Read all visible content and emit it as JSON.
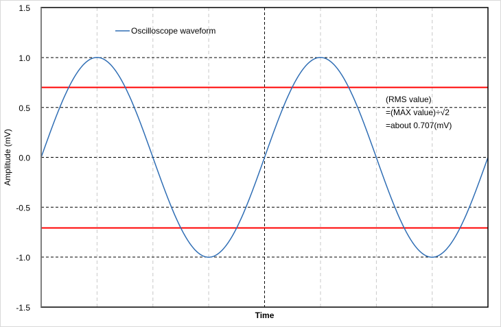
{
  "chart_data": {
    "type": "line",
    "title": "",
    "xlabel": "Time",
    "ylabel": "Amplitude (mV)",
    "ylim": [
      -1.5,
      1.5
    ],
    "yticks": [
      "1.5",
      "1.0",
      "0.5",
      "0.0",
      "-0.5",
      "-1.0",
      "-1.5"
    ],
    "xticks": [],
    "grid": true,
    "legend_position": "upper-left",
    "series": [
      {
        "name": "Oscilloscope waveform",
        "color": "#2e6db4",
        "x_phase_divisions": [
          0,
          1,
          2,
          3,
          4,
          5,
          6,
          7,
          8
        ],
        "values": [
          0.0,
          1.0,
          0.0,
          -1.0,
          0.0,
          1.0,
          0.0,
          -1.0,
          0.0
        ]
      }
    ],
    "reference_lines": [
      {
        "value": 0.707,
        "color": "#ff0000",
        "label": "RMS value"
      },
      {
        "value": -0.707,
        "color": "#ff0000",
        "label": "RMS value"
      }
    ],
    "annotations": [
      "(RMS value)",
      "=(MAX value)÷√2",
      "=about 0.707(mV)"
    ]
  },
  "legend": {
    "label": "Oscilloscope waveform"
  },
  "axes": {
    "x_title": "Time",
    "y_title": "Amplitude (mV)"
  },
  "note": {
    "line1": "(RMS value)",
    "line2": "=(MAX value)÷√2",
    "line3": "=about 0.707(mV)"
  },
  "y_ticks": {
    "t0": "1.5",
    "t1": "1.0",
    "t2": "0.5",
    "t3": "0.0",
    "t4": "-0.5",
    "t5": "-1.0",
    "t6": "-1.5"
  },
  "colors": {
    "wave": "#2e6db4",
    "rms": "#ff0000",
    "grid_major": "#000000",
    "grid_minor": "#bfbfbf"
  }
}
